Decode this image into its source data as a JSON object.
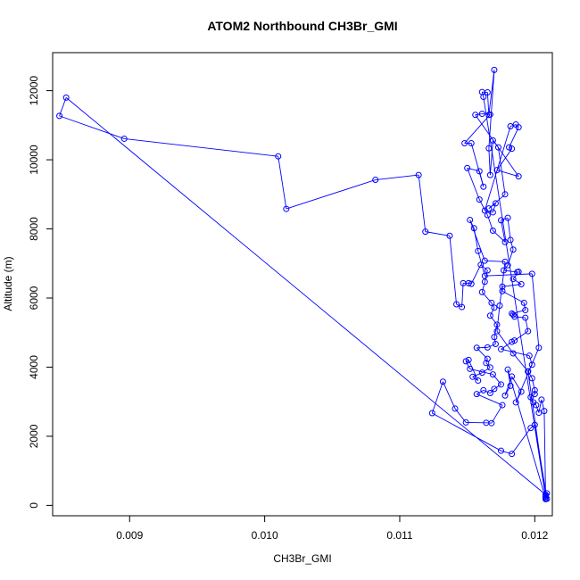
{
  "chart_data": {
    "type": "line",
    "title": "ATOM2 Northbound CH3Br_GMI",
    "xlabel": "CH3Br_GMI",
    "ylabel": "Altitude (m)",
    "xlim": [
      0.00843,
      0.01213
    ],
    "ylim": [
      -300,
      13100
    ],
    "x_ticks": [
      "0.009",
      "0.010",
      "0.011",
      "0.012"
    ],
    "y_ticks": [
      "0",
      "2000",
      "4000",
      "6000",
      "8000",
      "10000",
      "12000"
    ],
    "grid": false,
    "legend": "none",
    "markers": "open-circle",
    "color": "#0000ff",
    "series": [
      {
        "points": [
          [
            0.01208,
            250
          ],
          [
            0.01162,
            11820
          ],
          [
            0.01161,
            11960
          ],
          [
            0.01165,
            11950
          ],
          [
            0.01166,
            11300
          ],
          [
            0.0117,
            12600
          ],
          [
            0.01166,
            10330
          ],
          [
            0.01167,
            9560
          ],
          [
            0.01169,
            10560
          ],
          [
            0.01173,
            10360
          ],
          [
            0.01178,
            9000
          ],
          [
            0.01166,
            8590
          ],
          [
            0.01171,
            8740
          ],
          [
            0.01169,
            8480
          ],
          [
            0.01163,
            8530
          ],
          [
            0.01182,
            10970
          ],
          [
            0.01186,
            11020
          ],
          [
            0.01188,
            10940
          ],
          [
            0.01181,
            10360
          ],
          [
            0.01183,
            10320
          ],
          [
            0.01172,
            9700
          ],
          [
            0.01188,
            9520
          ],
          [
            0.01156,
            11300
          ],
          [
            0.01161,
            11330
          ],
          [
            0.01167,
            11310
          ],
          [
            0.01148,
            10480
          ],
          [
            0.01153,
            10480
          ],
          [
            0.01162,
            9220
          ],
          [
            0.01159,
            9670
          ],
          [
            0.0115,
            9760
          ],
          [
            0.01159,
            8850
          ],
          [
            0.01165,
            8400
          ],
          [
            0.01169,
            7950
          ],
          [
            0.01178,
            7620
          ],
          [
            0.01175,
            8250
          ],
          [
            0.0118,
            8320
          ],
          [
            0.01182,
            7680
          ],
          [
            0.01184,
            7400
          ],
          [
            0.0118,
            6950
          ],
          [
            0.01177,
            6800
          ],
          [
            0.01187,
            6750
          ],
          [
            0.01188,
            6760
          ],
          [
            0.01184,
            6550
          ],
          [
            0.0119,
            6400
          ],
          [
            0.01176,
            6330
          ],
          [
            0.01176,
            6200
          ],
          [
            0.01192,
            5860
          ],
          [
            0.01193,
            5650
          ],
          [
            0.01183,
            5550
          ],
          [
            0.01184,
            5520
          ],
          [
            0.01185,
            5460
          ],
          [
            0.01193,
            5430
          ],
          [
            0.01195,
            5040
          ],
          [
            0.01185,
            4770
          ],
          [
            0.01183,
            4730
          ],
          [
            0.01175,
            4520
          ],
          [
            0.01196,
            4330
          ],
          [
            0.01198,
            4070
          ],
          [
            0.01195,
            3880
          ],
          [
            0.01198,
            3680
          ],
          [
            0.012,
            3330
          ],
          [
            0.012,
            3220
          ],
          [
            0.01197,
            3130
          ],
          [
            0.01199,
            2980
          ],
          [
            0.01201,
            2900
          ],
          [
            0.01203,
            2680
          ],
          [
            0.01205,
            3060
          ],
          [
            0.01207,
            2730
          ],
          [
            0.01208,
            300
          ],
          [
            0.01208,
            180
          ],
          [
            0.01208,
            310
          ],
          [
            0.00853,
            11800
          ],
          [
            0.00848,
            11270
          ],
          [
            0.00896,
            10610
          ],
          [
            0.0101,
            10100
          ],
          [
            0.01016,
            8580
          ],
          [
            0.01082,
            9420
          ],
          [
            0.01114,
            9560
          ],
          [
            0.01119,
            7920
          ],
          [
            0.01137,
            7800
          ],
          [
            0.01142,
            5820
          ],
          [
            0.01146,
            5740
          ],
          [
            0.01147,
            6430
          ],
          [
            0.01151,
            6430
          ],
          [
            0.01153,
            6410
          ],
          [
            0.0116,
            6960
          ],
          [
            0.01165,
            6800
          ],
          [
            0.01163,
            6470
          ],
          [
            0.01161,
            6170
          ],
          [
            0.01168,
            5860
          ],
          [
            0.0117,
            5720
          ],
          [
            0.01167,
            5490
          ],
          [
            0.01172,
            5230
          ],
          [
            0.0117,
            4870
          ],
          [
            0.01171,
            4670
          ],
          [
            0.01165,
            4570
          ],
          [
            0.01157,
            4560
          ],
          [
            0.01165,
            4240
          ],
          [
            0.01164,
            4120
          ],
          [
            0.01167,
            3990
          ],
          [
            0.01161,
            3840
          ],
          [
            0.01154,
            3720
          ],
          [
            0.01158,
            3610
          ],
          [
            0.01151,
            4210
          ],
          [
            0.01149,
            4170
          ],
          [
            0.01152,
            3950
          ],
          [
            0.01169,
            3790
          ],
          [
            0.01175,
            3500
          ],
          [
            0.0117,
            3370
          ],
          [
            0.01167,
            3250
          ],
          [
            0.01162,
            3330
          ],
          [
            0.01157,
            3220
          ],
          [
            0.01176,
            2900
          ],
          [
            0.01168,
            2380
          ],
          [
            0.01164,
            2390
          ],
          [
            0.01149,
            2400
          ],
          [
            0.01141,
            2800
          ],
          [
            0.01132,
            3580
          ],
          [
            0.01124,
            2670
          ],
          [
            0.01175,
            1580
          ],
          [
            0.01183,
            1490
          ],
          [
            0.01197,
            2240
          ],
          [
            0.012,
            2330
          ],
          [
            0.01209,
            190
          ],
          [
            0.01209,
            350
          ],
          [
            0.01208,
            210
          ],
          [
            0.0118,
            3930
          ],
          [
            0.01182,
            3460
          ],
          [
            0.01178,
            3180
          ],
          [
            0.01183,
            3730
          ],
          [
            0.0119,
            3290
          ],
          [
            0.01186,
            2980
          ],
          [
            0.01203,
            4560
          ],
          [
            0.01198,
            6700
          ],
          [
            0.01163,
            6640
          ],
          [
            0.01158,
            7360
          ],
          [
            0.01155,
            8020
          ],
          [
            0.01152,
            8260
          ],
          [
            0.01163,
            7080
          ],
          [
            0.01178,
            7050
          ],
          [
            0.01174,
            5780
          ],
          [
            0.01172,
            5040
          ],
          [
            0.01184,
            4400
          ],
          [
            0.01195,
            3870
          ],
          [
            0.01208,
            260
          ]
        ]
      }
    ]
  }
}
